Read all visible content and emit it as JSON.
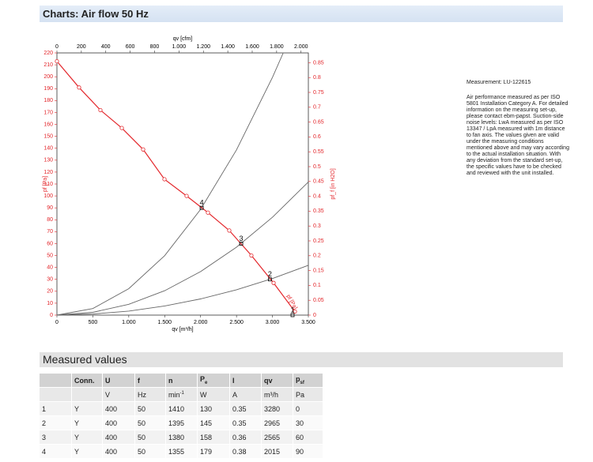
{
  "header": {
    "title": "Charts: Air flow 50 Hz"
  },
  "chart_data": {
    "type": "line",
    "x_label": "qv [m³/h]",
    "x2_label": "qv [cfm]",
    "y_label": "pf [Pa]",
    "y2_label": "pf_f [in H2O]",
    "xlim": [
      0,
      3500
    ],
    "x2lim": [
      0,
      2060
    ],
    "ylim": [
      0,
      220
    ],
    "y2lim": [
      0,
      0.883
    ],
    "xticks": [
      0,
      500,
      {
        "value": 1000,
        "label": "1.000"
      },
      {
        "value": 1500,
        "label": "1.500"
      },
      {
        "value": 2000,
        "label": "2.000"
      },
      {
        "value": 2500,
        "label": "2.500"
      },
      {
        "value": 3000,
        "label": "3.000"
      },
      {
        "value": 3500,
        "label": "3.500"
      }
    ],
    "x2ticks": [
      0,
      200,
      400,
      600,
      800,
      {
        "value": 1000,
        "label": "1.000"
      },
      {
        "value": 1200,
        "label": "1.200"
      },
      {
        "value": 1400,
        "label": "1.400"
      },
      {
        "value": 1600,
        "label": "1.600"
      },
      {
        "value": 1800,
        "label": "1.800"
      },
      {
        "value": 2000,
        "label": "2.000"
      }
    ],
    "yticks": [
      0,
      10,
      20,
      30,
      40,
      50,
      60,
      70,
      80,
      90,
      100,
      110,
      120,
      130,
      140,
      150,
      160,
      170,
      180,
      190,
      200,
      210,
      220
    ],
    "y2ticks": [
      0,
      0.05,
      0.1,
      0.15,
      0.2,
      0.25,
      0.3,
      0.35,
      0.4,
      0.45,
      0.5,
      0.55,
      0.6,
      0.65,
      0.7,
      0.75,
      0.8,
      0.85
    ],
    "series": [
      {
        "name": "pf [Pa]",
        "color": "#e3262b",
        "markers": true,
        "x": [
          0,
          308,
          605,
          903,
          1200,
          1497,
          1805,
          2102,
          2399,
          2707,
          3016,
          3313
        ],
        "values": [
          213,
          191,
          172,
          157,
          139,
          114,
          100,
          86,
          71,
          50,
          27,
          3
        ]
      },
      {
        "color": "#666666",
        "x": [
          0,
          500,
          1000,
          1500,
          2000,
          2500,
          3000,
          3150
        ],
        "values": [
          0,
          5.5,
          22.2,
          49.9,
          88.7,
          138.6,
          199.5,
          220
        ]
      },
      {
        "color": "#666666",
        "x": [
          0,
          500,
          1000,
          1500,
          2000,
          2500,
          3000,
          3500
        ],
        "values": [
          0,
          2.3,
          9.1,
          20.5,
          36.5,
          57.0,
          82.1,
          111.7
        ]
      },
      {
        "color": "#666666",
        "x": [
          0,
          500,
          1000,
          1500,
          2000,
          2500,
          3000,
          3500
        ],
        "values": [
          0,
          0.9,
          3.4,
          7.7,
          13.6,
          21.3,
          30.7,
          41.8
        ]
      }
    ],
    "operating_points": {
      "labels": [
        "1",
        "2",
        "3",
        "4"
      ],
      "x": [
        3280,
        2965,
        2565,
        2015
      ],
      "values": [
        0,
        30,
        60,
        90
      ]
    }
  },
  "measurement": {
    "id": "Measurement: LU-122615",
    "text": "Air performance measured as per ISO 5801 Installation Category A. For detailed information on the measuring set-up, please contact ebm-papst. Suction-side noise levels: LwA measured as per ISO 13347 / LpA measured with 1m distance to fan axis. The values given are valid under the measuring conditions mentioned above and may vary according to the actual installation situation. With any deviation from the standard set-up, the specific values have to be checked and reviewed with the unit installed."
  },
  "table": {
    "title": "Measured values",
    "header": [
      "",
      "Conn.",
      "U",
      "f",
      "n",
      {
        "main": "P",
        "sub": "e"
      },
      "I",
      "qv",
      {
        "main": "p",
        "sub": "sf"
      }
    ],
    "units": [
      "",
      "",
      "V",
      "Hz",
      {
        "main": "min",
        "sup": "-1"
      },
      "W",
      "A",
      "m³/h",
      "Pa"
    ],
    "rows": [
      [
        "1",
        "Y",
        "400",
        "50",
        "1410",
        "130",
        "0.35",
        "3280",
        "0"
      ],
      [
        "2",
        "Y",
        "400",
        "50",
        "1395",
        "145",
        "0.35",
        "2965",
        "30"
      ],
      [
        "3",
        "Y",
        "400",
        "50",
        "1380",
        "158",
        "0.36",
        "2565",
        "60"
      ],
      [
        "4",
        "Y",
        "400",
        "50",
        "1355",
        "179",
        "0.38",
        "2015",
        "90"
      ]
    ]
  }
}
